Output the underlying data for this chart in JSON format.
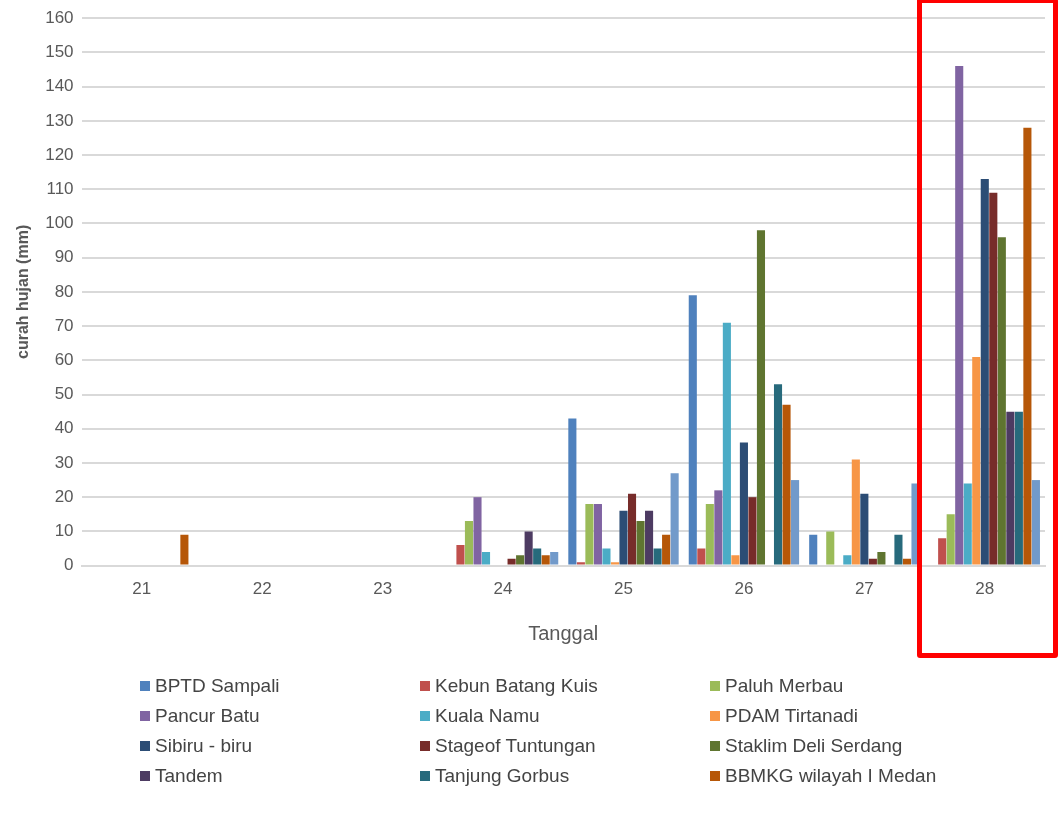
{
  "chart_data": {
    "type": "bar",
    "xlabel": "Tanggal",
    "ylabel": "curah hujan (mm)",
    "categories": [
      "21",
      "22",
      "23",
      "24",
      "25",
      "26",
      "27",
      "28"
    ],
    "series": [
      {
        "name": "BPTD Sampali",
        "color": "#4f81bd",
        "values": [
          0,
          0,
          0,
          0,
          43,
          79,
          9,
          0
        ]
      },
      {
        "name": "Kebun Batang Kuis",
        "color": "#c0504d",
        "values": [
          0,
          0,
          0,
          6,
          1,
          5,
          0,
          8
        ]
      },
      {
        "name": "Paluh Merbau",
        "color": "#9bbb59",
        "values": [
          0,
          0,
          0,
          13,
          18,
          18,
          10,
          15
        ]
      },
      {
        "name": "Pancur Batu",
        "color": "#8064a2",
        "values": [
          0,
          0,
          0,
          20,
          18,
          22,
          0,
          146
        ]
      },
      {
        "name": "Kuala Namu",
        "color": "#4bacc6",
        "values": [
          0,
          0,
          0,
          4,
          5,
          71,
          3,
          24
        ]
      },
      {
        "name": "PDAM Tirtanadi",
        "color": "#f79646",
        "values": [
          0,
          0,
          0,
          0,
          1,
          3,
          31,
          61
        ]
      },
      {
        "name": "Sibiru - biru",
        "color": "#2c4d75",
        "values": [
          0,
          0,
          0,
          0,
          16,
          36,
          21,
          113
        ]
      },
      {
        "name": "Stageof Tuntungan",
        "color": "#772c2a",
        "values": [
          0,
          0,
          0,
          2,
          21,
          20,
          2,
          109
        ]
      },
      {
        "name": "Staklim Deli Serdang",
        "color": "#5f7530",
        "values": [
          0,
          0,
          0,
          3,
          13,
          98,
          4,
          96
        ]
      },
      {
        "name": "Tandem",
        "color": "#4d3b62",
        "values": [
          0,
          0,
          0,
          10,
          16,
          0,
          0,
          45
        ]
      },
      {
        "name": "Tanjung Gorbus",
        "color": "#276a7c",
        "values": [
          0,
          0,
          0,
          5,
          5,
          53,
          9,
          45
        ]
      },
      {
        "name": "BBMKG wilayah I Medan",
        "color": "#b65708",
        "values": [
          9,
          0,
          0,
          3,
          9,
          47,
          2,
          128
        ]
      },
      {
        "color": "#729aca",
        "values": [
          0,
          0,
          0,
          4,
          27,
          25,
          24,
          25
        ]
      }
    ],
    "ylim": [
      0,
      160
    ],
    "yticks": [
      0,
      10,
      20,
      30,
      40,
      50,
      60,
      70,
      80,
      90,
      100,
      110,
      120,
      130,
      140,
      150,
      160
    ],
    "grid": "y",
    "legend": "bottom"
  }
}
